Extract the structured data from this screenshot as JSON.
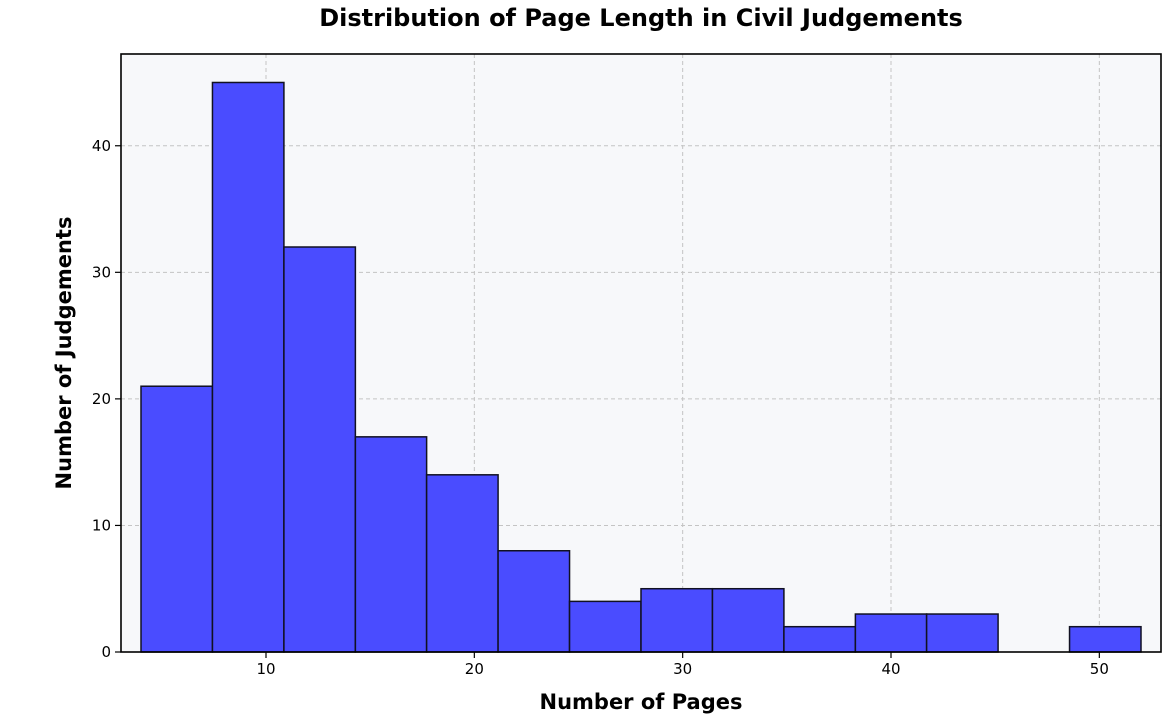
{
  "chart_data": {
    "type": "bar",
    "title": "Distribution of Page Length in Civil Judgements",
    "xlabel": "Number of Pages",
    "ylabel": "Number of Judgements",
    "bins": [
      {
        "x0": 4.0,
        "x1": 7.43,
        "count": 21
      },
      {
        "x0": 7.43,
        "x1": 10.86,
        "count": 45
      },
      {
        "x0": 10.86,
        "x1": 14.29,
        "count": 32
      },
      {
        "x0": 14.29,
        "x1": 17.71,
        "count": 17
      },
      {
        "x0": 17.71,
        "x1": 21.14,
        "count": 14
      },
      {
        "x0": 21.14,
        "x1": 24.57,
        "count": 8
      },
      {
        "x0": 24.57,
        "x1": 28.0,
        "count": 4
      },
      {
        "x0": 28.0,
        "x1": 31.43,
        "count": 5
      },
      {
        "x0": 31.43,
        "x1": 34.86,
        "count": 5
      },
      {
        "x0": 34.86,
        "x1": 38.29,
        "count": 2
      },
      {
        "x0": 38.29,
        "x1": 41.71,
        "count": 3
      },
      {
        "x0": 41.71,
        "x1": 45.14,
        "count": 3
      },
      {
        "x0": 45.14,
        "x1": 48.57,
        "count": 0
      },
      {
        "x0": 48.57,
        "x1": 52.0,
        "count": 2
      }
    ],
    "xlim": [
      3.04,
      52.96
    ],
    "ylim": [
      0,
      47.25
    ],
    "xticks": [
      10,
      20,
      30,
      40,
      50
    ],
    "yticks": [
      0,
      10,
      20,
      30,
      40
    ],
    "grid": true,
    "bar_color": "#4a4cff",
    "background_color": "#f7f8fa"
  }
}
